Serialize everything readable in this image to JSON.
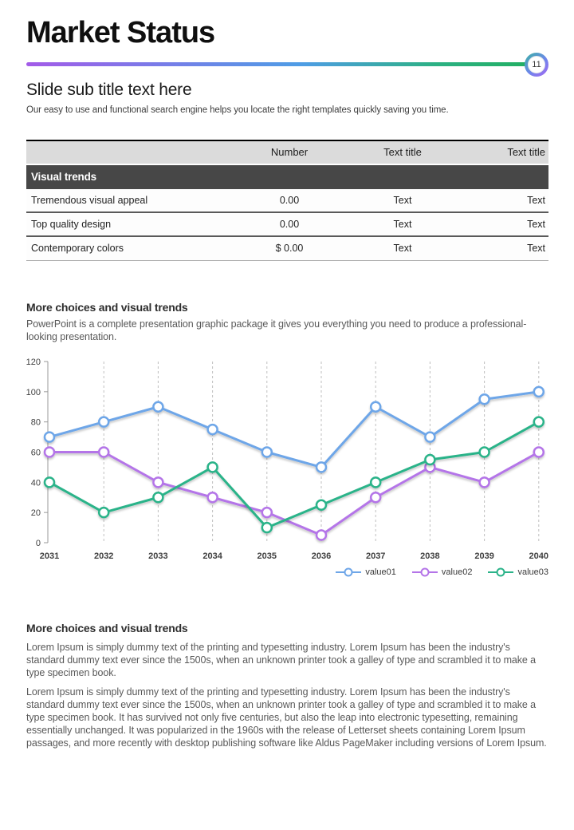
{
  "header": {
    "title": "Market Status",
    "page_number": "11",
    "subtitle": "Slide sub title text here",
    "description": "Our easy to use and functional search engine  helps you locate the right templates quickly saving you time."
  },
  "table": {
    "headers": [
      "",
      "Number",
      "Text title",
      "Text title"
    ],
    "section_header": "Visual trends",
    "rows": [
      {
        "label": "Tremendous visual appeal",
        "number": "0.00",
        "text1": "Text",
        "text2": "Text"
      },
      {
        "label": "Top quality design",
        "number": "0.00",
        "text1": "Text",
        "text2": "Text"
      },
      {
        "label": "Contemporary colors",
        "number": "$ 0.00",
        "text1": "Text",
        "text2": "Text"
      }
    ]
  },
  "chart_section": {
    "heading": "More choices and visual trends",
    "body": "PowerPoint is a complete presentation graphic package it gives you everything you need to produce a professional-looking presentation."
  },
  "chart_data": {
    "type": "line",
    "title": "",
    "xlabel": "",
    "ylabel": "",
    "categories": [
      "2031",
      "2032",
      "2033",
      "2034",
      "2035",
      "2036",
      "2037",
      "2038",
      "2039",
      "2040"
    ],
    "series": [
      {
        "name": "value01",
        "color": "#6ea6e8",
        "values": [
          70,
          80,
          90,
          75,
          60,
          50,
          90,
          70,
          95,
          100
        ]
      },
      {
        "name": "value02",
        "color": "#b474e8",
        "values": [
          60,
          60,
          40,
          30,
          20,
          5,
          30,
          50,
          40,
          60
        ]
      },
      {
        "name": "value03",
        "color": "#2bb389",
        "values": [
          40,
          20,
          30,
          50,
          10,
          25,
          40,
          55,
          60,
          80
        ]
      }
    ],
    "ylim": [
      0,
      120
    ],
    "yticks": [
      0,
      20,
      40,
      60,
      80,
      100,
      120
    ],
    "grid": "vertical-dashed",
    "legend_position": "bottom-right",
    "marker": "open-circle"
  },
  "text_section": {
    "heading": "More choices and visual trends",
    "paragraphs": [
      "Lorem Ipsum is simply dummy text of the printing and typesetting industry. Lorem Ipsum has been the industry's standard dummy text ever since the 1500s,  when an unknown printer took a galley of type and scrambled it to make a type specimen book.",
      "Lorem Ipsum is simply dummy text of the printing and typesetting industry. Lorem Ipsum has been the industry's standard dummy text ever since the 1500s,  when an unknown printer took a galley of type and scrambled it to make a type specimen book. It has survived not only five centuries, but also the leap into electronic typesetting, remaining essentially unchanged. It was popularized in the 1960s  with the release of Letterset sheets containing Lorem Ipsum passages, and more recently with desktop publishing software like Aldus PageMaker including versions of Lorem Ipsum."
    ]
  },
  "accent_colors": {
    "gradient_start": "#a35be8",
    "gradient_mid": "#4e9de5",
    "gradient_end": "#22af64",
    "table_header_bg": "#dbdbdb",
    "table_section_bg": "#474747"
  }
}
